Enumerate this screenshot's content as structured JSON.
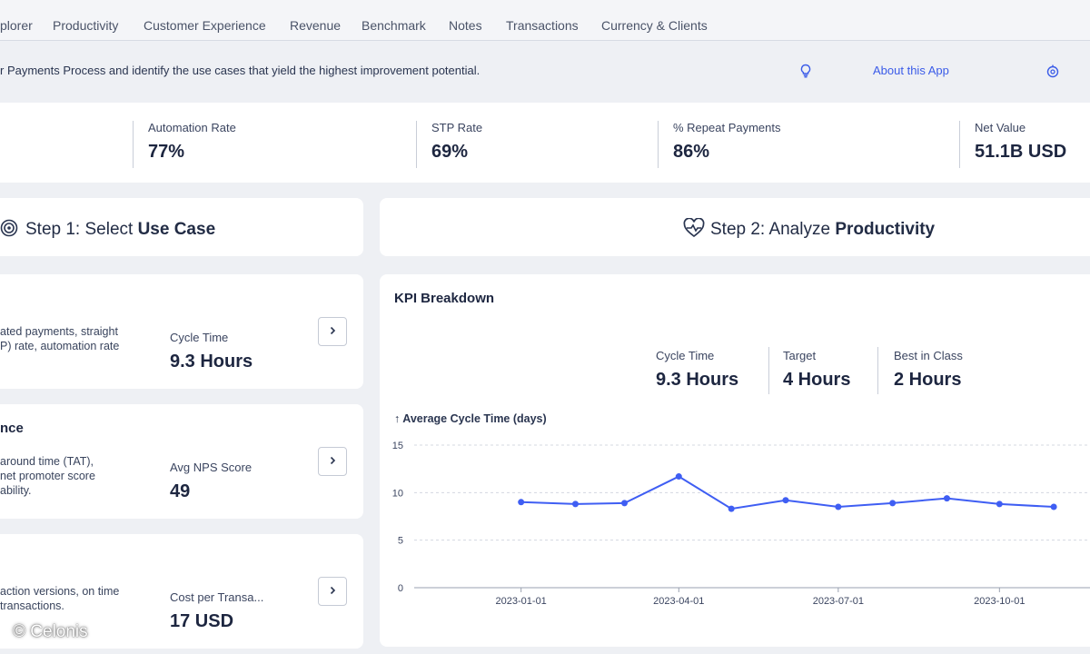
{
  "nav": {
    "tabs": [
      "plorer",
      "Productivity",
      "Customer Experience",
      "Revenue",
      "Benchmark",
      "Notes",
      "Transactions",
      "Currency & Clients"
    ]
  },
  "info": {
    "description": "r Payments Process and identify the use cases that yield the highest improvement potential.",
    "about_label": "About this App"
  },
  "kpis": [
    {
      "label": "Automation Rate",
      "value": "77%"
    },
    {
      "label": "STP Rate",
      "value": "69%"
    },
    {
      "label": "% Repeat Payments",
      "value": "86%"
    },
    {
      "label": "Net Value",
      "value": "51.1B USD"
    }
  ],
  "step1": {
    "prefix": "Step 1: Select ",
    "emphasis": "Use Case"
  },
  "step2": {
    "prefix": "Step 2: Analyze ",
    "emphasis": "Productivity"
  },
  "use_cases": [
    {
      "title": "",
      "desc_line1": "ated payments, straight",
      "desc_line2": "P) rate, automation rate",
      "desc_line3": "",
      "metric_label": "Cycle Time",
      "metric_value": "9.3 Hours"
    },
    {
      "title": "nce",
      "desc_line1": "around time (TAT),",
      "desc_line2": "net promoter score",
      "desc_line3": "ability.",
      "metric_label": "Avg NPS Score",
      "metric_value": "49"
    },
    {
      "title": "",
      "desc_line1": "action versions, on time",
      "desc_line2": "transactions.",
      "desc_line3": "",
      "metric_label": "Cost per Transa...",
      "metric_value": "17 USD"
    }
  ],
  "kpi_breakdown": {
    "title": "KPI Breakdown",
    "items": [
      {
        "label": "Cycle Time",
        "value": "9.3 Hours"
      },
      {
        "label": "Target",
        "value": "4 Hours"
      },
      {
        "label": "Best in Class",
        "value": "2 Hours"
      }
    ]
  },
  "colors": {
    "accent": "#3a5be8",
    "line": "#3f5ef3"
  },
  "chart_data": {
    "type": "line",
    "ylabel": "↑ Average Cycle Time (days)",
    "ylim": [
      0,
      15
    ],
    "yticks": [
      0,
      5,
      10,
      15
    ],
    "xticks": [
      "2023-01-01",
      "2023-04-01",
      "2023-07-01",
      "2023-10-01"
    ],
    "x": [
      "2023-01-01",
      "2023-02-01",
      "2023-03-01",
      "2023-04-01",
      "2023-05-01",
      "2023-06-01",
      "2023-07-01",
      "2023-08-01",
      "2023-09-01",
      "2023-10-01",
      "2023-11-01"
    ],
    "series": [
      {
        "values": [
          9.0,
          8.8,
          8.9,
          11.7,
          8.3,
          9.2,
          8.5,
          8.9,
          9.4,
          8.8,
          8.5
        ]
      }
    ],
    "grid": true
  },
  "footer": {
    "copyright": "© Celonis"
  }
}
